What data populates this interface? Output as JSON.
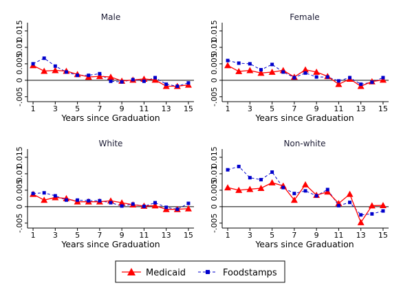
{
  "chart_data": [
    {
      "type": "line",
      "title": "Male",
      "xlabel": "Years since Graduation",
      "ylabel": "",
      "x": [
        1,
        2,
        3,
        4,
        5,
        6,
        7,
        8,
        9,
        10,
        11,
        12,
        13,
        14,
        15
      ],
      "xticks": [
        "1",
        "3",
        "5",
        "7",
        "9",
        "11",
        "13",
        "15"
      ],
      "yticks": [
        "-.005",
        "0",
        "0.005",
        "0.01",
        "0.015"
      ],
      "ylim": [
        -0.0065,
        0.0175
      ],
      "series": [
        {
          "name": "Medicaid",
          "values": [
            0.0045,
            0.0028,
            0.003,
            0.0028,
            0.0018,
            0.001,
            0.0012,
            0.001,
            -0.0002,
            0.0001,
            0.0004,
            0.0001,
            -0.0018,
            -0.0018,
            -0.0014
          ]
        },
        {
          "name": "Foodstamps",
          "values": [
            0.005,
            0.0067,
            0.0043,
            0.0025,
            0.0015,
            0.0015,
            0.002,
            -0.0003,
            -0.0005,
            0.0002,
            -0.0003,
            0.0008,
            -0.0012,
            -0.0018,
            -0.0008
          ]
        }
      ]
    },
    {
      "type": "line",
      "title": "Female",
      "xlabel": "Years since Graduation",
      "ylabel": "",
      "x": [
        1,
        2,
        3,
        4,
        5,
        6,
        7,
        8,
        9,
        10,
        11,
        12,
        13,
        14,
        15
      ],
      "xticks": [
        "1",
        "3",
        "5",
        "7",
        "9",
        "11",
        "13",
        "15"
      ],
      "yticks": [
        "-.005",
        "0",
        "0.005",
        "0.01",
        "0.015"
      ],
      "ylim": [
        -0.0065,
        0.0175
      ],
      "series": [
        {
          "name": "Medicaid",
          "values": [
            0.0045,
            0.0027,
            0.003,
            0.0022,
            0.0025,
            0.003,
            0.001,
            0.0032,
            0.0025,
            0.0012,
            -0.0012,
            0.0004,
            -0.0018,
            -0.0004,
            0.0001
          ]
        },
        {
          "name": "Foodstamps",
          "values": [
            0.006,
            0.0052,
            0.005,
            0.0032,
            0.0048,
            0.0025,
            0.0008,
            0.0022,
            0.001,
            0.001,
            -0.0002,
            0.0008,
            -0.0012,
            -0.0006,
            0.0008
          ]
        }
      ]
    },
    {
      "type": "line",
      "title": "White",
      "xlabel": "Years since Graduation",
      "ylabel": "",
      "x": [
        1,
        2,
        3,
        4,
        5,
        6,
        7,
        8,
        9,
        10,
        11,
        12,
        13,
        14,
        15
      ],
      "xticks": [
        "1",
        "3",
        "5",
        "7",
        "9",
        "11",
        "13",
        "15"
      ],
      "yticks": [
        "-.005",
        "0",
        "0.005",
        "0.01",
        "0.015"
      ],
      "ylim": [
        -0.0065,
        0.0175
      ],
      "series": [
        {
          "name": "Medicaid",
          "values": [
            0.0038,
            0.002,
            0.0028,
            0.0025,
            0.0015,
            0.0015,
            0.0015,
            0.0018,
            0.0012,
            0.0006,
            0.0002,
            0.0003,
            -0.0008,
            -0.0008,
            -0.0006
          ]
        },
        {
          "name": "Foodstamps",
          "values": [
            0.004,
            0.0042,
            0.0033,
            0.002,
            0.002,
            0.0018,
            0.0018,
            0.0012,
            0.0002,
            0.0008,
            0.0001,
            0.0012,
            -0.0002,
            -0.0008,
            0.001
          ]
        }
      ]
    },
    {
      "type": "line",
      "title": "Non-white",
      "xlabel": "Years since Graduation",
      "ylabel": "",
      "x": [
        1,
        2,
        3,
        4,
        5,
        6,
        7,
        8,
        9,
        10,
        11,
        12,
        13,
        14,
        15
      ],
      "xticks": [
        "1",
        "3",
        "5",
        "7",
        "9",
        "11",
        "13",
        "15"
      ],
      "yticks": [
        "-.005",
        "0",
        "0.005",
        "0.01",
        "0.015"
      ],
      "ylim": [
        -0.0065,
        0.0175
      ],
      "series": [
        {
          "name": "Medicaid",
          "values": [
            0.0058,
            0.005,
            0.0053,
            0.0056,
            0.0073,
            0.0063,
            0.002,
            0.0067,
            0.0035,
            0.0045,
            0.001,
            0.0038,
            -0.0048,
            0.0003,
            0.0004
          ]
        },
        {
          "name": "Foodstamps",
          "values": [
            0.0112,
            0.0122,
            0.0088,
            0.0082,
            0.0105,
            0.0058,
            0.004,
            0.0048,
            0.0033,
            0.0052,
            0.0003,
            0.0013,
            -0.0025,
            -0.0022,
            -0.0013
          ]
        }
      ]
    }
  ],
  "legend": {
    "placement": "bottom",
    "items": [
      {
        "label": "Medicaid",
        "marker": "triangle",
        "color": "#ff0000"
      },
      {
        "label": "Foodstamps",
        "marker": "square",
        "color": "#0000cc"
      }
    ]
  },
  "colors": {
    "medicaid": "#ff0000",
    "foodstamps": "#0000cc",
    "axis": "#000000",
    "background": "#ffffff"
  }
}
